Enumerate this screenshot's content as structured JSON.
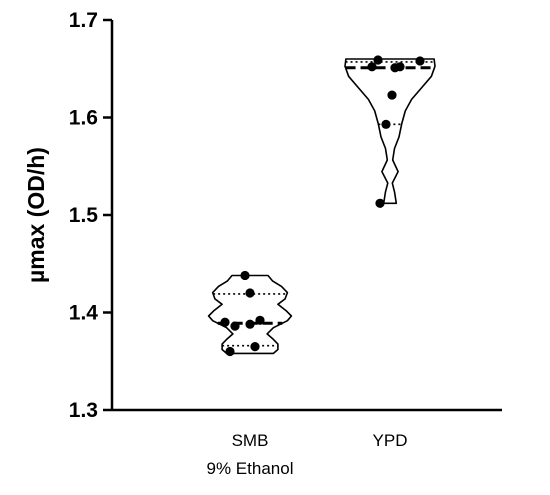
{
  "chart_data": {
    "type": "violin",
    "ylabel": "µmax (OD/h)",
    "ylim": [
      1.3,
      1.7
    ],
    "yticks": [
      "1.3",
      "1.4",
      "1.5",
      "1.6",
      "1.7"
    ],
    "grid": false,
    "legend": "none",
    "line_color": "#000000",
    "groups": [
      {
        "label_lines": [
          "SMB",
          "9% Ethanol"
        ],
        "points": [
          1.438,
          1.42,
          1.39,
          1.388,
          1.392,
          1.386,
          1.365,
          1.36
        ],
        "median": 1.389,
        "q1": 1.366,
        "q3": 1.419,
        "min": 1.358,
        "max": 1.438
      },
      {
        "label_lines": [
          "YPD"
        ],
        "points": [
          1.659,
          1.652,
          1.651,
          1.652,
          1.658,
          1.623,
          1.593,
          1.512
        ],
        "median": 1.651,
        "q1": 1.593,
        "q3": 1.657,
        "min": 1.512,
        "max": 1.66
      }
    ]
  }
}
